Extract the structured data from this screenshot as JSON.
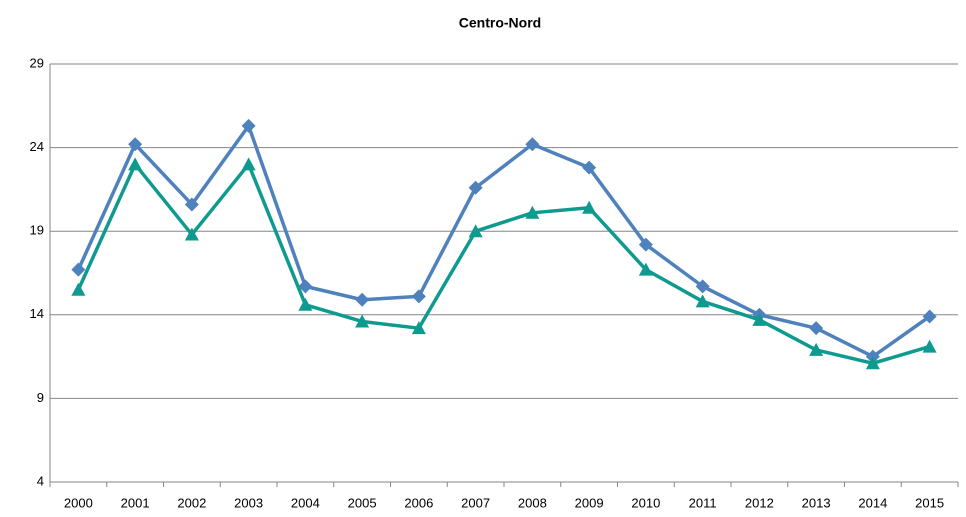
{
  "chart_data": {
    "type": "line",
    "title": "Centro-Nord",
    "categories": [
      "2000",
      "2001",
      "2002",
      "2003",
      "2004",
      "2005",
      "2006",
      "2007",
      "2008",
      "2009",
      "2010",
      "2011",
      "2012",
      "2013",
      "2014",
      "2015"
    ],
    "series": [
      {
        "color": "#4f81bd",
        "marker": "diamond",
        "values": [
          16.7,
          24.2,
          20.6,
          25.3,
          15.7,
          14.9,
          15.1,
          21.6,
          24.2,
          22.8,
          18.2,
          15.7,
          14.0,
          13.2,
          11.5,
          13.9
        ]
      },
      {
        "color": "#0e9a8f",
        "marker": "triangle",
        "values": [
          15.5,
          23.0,
          18.8,
          23.0,
          14.6,
          13.6,
          13.2,
          19.0,
          20.1,
          20.4,
          16.7,
          14.8,
          13.7,
          11.9,
          11.1,
          12.1
        ]
      }
    ],
    "ylim": [
      4,
      29
    ],
    "yticks": [
      4,
      9,
      14,
      19,
      24,
      29
    ],
    "grid": true
  }
}
